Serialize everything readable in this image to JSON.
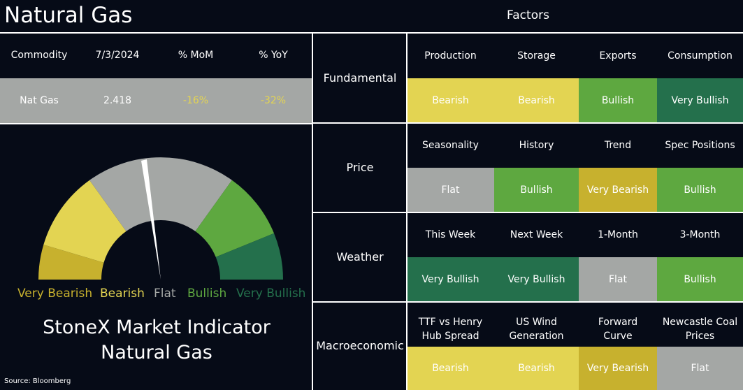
{
  "header": {
    "title": "Natural Gas",
    "factors_title": "Factors"
  },
  "commodity_table": {
    "columns": [
      "Commodity",
      "7/3/2024",
      "% MoM",
      "% YoY"
    ],
    "row": {
      "commodity": "Nat Gas",
      "price": "2.418",
      "mom": "-16%",
      "yoy": "-32%"
    }
  },
  "gauge": {
    "labels": [
      "Very Bearish",
      "Bearish",
      "Flat",
      "Bullish",
      "Very Bullish"
    ],
    "indicator_line1": "StoneX Market Indicator",
    "indicator_line2": "Natural Gas"
  },
  "source": "Source: Bloomberg",
  "colors": {
    "very_bearish": "#c7b12e",
    "bearish": "#e3d452",
    "flat": "#a4a7a5",
    "bullish": "#5ea840",
    "very_bullish": "#24704c"
  },
  "factors": [
    {
      "category": "Fundamental",
      "items": [
        {
          "name": "Production",
          "value": "Bearish"
        },
        {
          "name": "Storage",
          "value": "Bearish"
        },
        {
          "name": "Exports",
          "value": "Bullish"
        },
        {
          "name": "Consumption",
          "value": "Very Bullish"
        }
      ]
    },
    {
      "category": "Price",
      "items": [
        {
          "name": "Seasonality",
          "value": "Flat"
        },
        {
          "name": "History",
          "value": "Bullish"
        },
        {
          "name": "Trend",
          "value": "Very Bearish"
        },
        {
          "name": "Spec Positions",
          "value": "Bullish"
        }
      ]
    },
    {
      "category": "Weather",
      "items": [
        {
          "name": "This Week",
          "value": "Very Bullish"
        },
        {
          "name": "Next Week",
          "value": "Very Bullish"
        },
        {
          "name": "1-Month",
          "value": "Flat"
        },
        {
          "name": "3-Month",
          "value": "Bullish"
        }
      ]
    },
    {
      "category": "Macroeconomic",
      "items": [
        {
          "name": "TTF vs Henry Hub Spread",
          "value": "Bearish"
        },
        {
          "name": "US Wind Generation",
          "value": "Bearish"
        },
        {
          "name": "Forward Curve",
          "value": "Very Bearish"
        },
        {
          "name": "Newcastle Coal Prices",
          "value": "Flat"
        }
      ]
    }
  ]
}
